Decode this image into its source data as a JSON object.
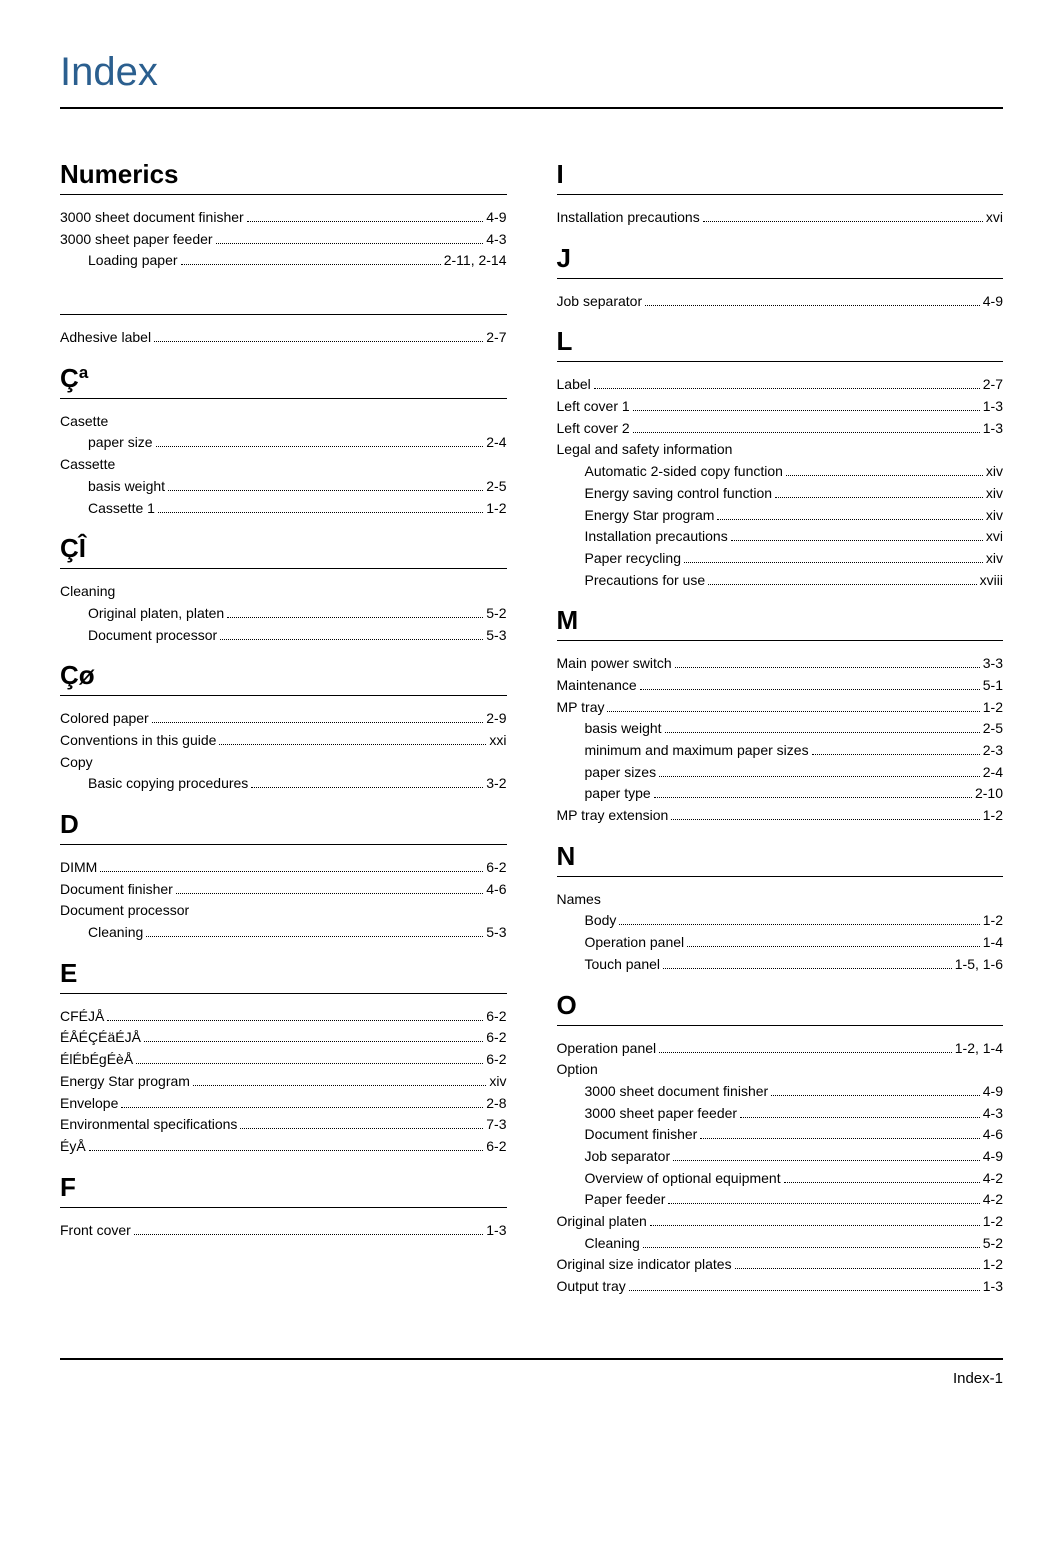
{
  "title": "Index",
  "footer": "Index-1",
  "left": [
    {
      "type": "heading",
      "text": "Numerics",
      "first": true
    },
    {
      "type": "entry",
      "term": "3000 sheet document finisher",
      "page": "4-9"
    },
    {
      "type": "entry",
      "term": "3000 sheet paper feeder",
      "page": "4-3"
    },
    {
      "type": "sub",
      "term": "Loading paper",
      "page": "2-11, 2-14"
    },
    {
      "type": "rule"
    },
    {
      "type": "entry",
      "term": "Adhesive label",
      "page": "2-7"
    },
    {
      "type": "heading",
      "text": "Çª"
    },
    {
      "type": "entry",
      "term": "Casette",
      "page": "",
      "noleader": true
    },
    {
      "type": "sub",
      "term": "paper size",
      "page": "2-4"
    },
    {
      "type": "entry",
      "term": "Cassette",
      "page": "",
      "noleader": true
    },
    {
      "type": "sub",
      "term": "basis weight",
      "page": "2-5"
    },
    {
      "type": "sub",
      "term": "Cassette 1",
      "page": "1-2"
    },
    {
      "type": "heading",
      "text": "ÇÎ"
    },
    {
      "type": "entry",
      "term": "Cleaning",
      "page": "",
      "noleader": true
    },
    {
      "type": "sub",
      "term": "Original platen, platen",
      "page": "5-2"
    },
    {
      "type": "sub",
      "term": "Document processor",
      "page": "5-3"
    },
    {
      "type": "heading",
      "text": "Çø"
    },
    {
      "type": "entry",
      "term": "Colored paper",
      "page": "2-9"
    },
    {
      "type": "entry",
      "term": "Conventions in this guide",
      "page": "xxi"
    },
    {
      "type": "entry",
      "term": "Copy",
      "page": "",
      "noleader": true
    },
    {
      "type": "sub",
      "term": "Basic copying procedures",
      "page": "3-2"
    },
    {
      "type": "heading",
      "text": "D"
    },
    {
      "type": "entry",
      "term": "DIMM",
      "page": "6-2"
    },
    {
      "type": "entry",
      "term": "Document finisher",
      "page": "4-6"
    },
    {
      "type": "entry",
      "term": "Document processor",
      "page": "",
      "noleader": true
    },
    {
      "type": "sub",
      "term": "Cleaning",
      "page": "5-3"
    },
    {
      "type": "heading",
      "text": "E"
    },
    {
      "type": "entry",
      "term": "CFÉJÅ",
      "page": "6-2"
    },
    {
      "type": "entry",
      "term": "ÉÅÉÇÉäÉJÅ",
      "page": "6-2"
    },
    {
      "type": "entry",
      "term": "ÉlÉbÉgÉèÅ",
      "page": "6-2"
    },
    {
      "type": "entry",
      "term": "Energy Star program",
      "page": "xiv"
    },
    {
      "type": "entry",
      "term": "Envelope",
      "page": "2-8"
    },
    {
      "type": "entry",
      "term": "Environmental specifications",
      "page": "7-3"
    },
    {
      "type": "entry",
      "term": "ÉyÅ",
      "page": "6-2"
    },
    {
      "type": "heading",
      "text": "F"
    },
    {
      "type": "entry",
      "term": "Front cover",
      "page": "1-3"
    }
  ],
  "right": [
    {
      "type": "heading",
      "text": "I",
      "first": true
    },
    {
      "type": "entry",
      "term": "Installation precautions",
      "page": "xvi"
    },
    {
      "type": "heading",
      "text": "J"
    },
    {
      "type": "entry",
      "term": "Job separator",
      "page": "4-9"
    },
    {
      "type": "heading",
      "text": "L"
    },
    {
      "type": "entry",
      "term": "Label",
      "page": "2-7"
    },
    {
      "type": "entry",
      "term": "Left cover 1",
      "page": "1-3"
    },
    {
      "type": "entry",
      "term": "Left cover 2",
      "page": "1-3"
    },
    {
      "type": "entry",
      "term": "Legal and safety information",
      "page": "",
      "noleader": true
    },
    {
      "type": "sub",
      "term": "Automatic 2-sided copy function",
      "page": "xiv"
    },
    {
      "type": "sub",
      "term": "Energy saving control function",
      "page": "xiv"
    },
    {
      "type": "sub",
      "term": "Energy Star program",
      "page": "xiv"
    },
    {
      "type": "sub",
      "term": "Installation precautions",
      "page": "xvi"
    },
    {
      "type": "sub",
      "term": "Paper recycling",
      "page": "xiv"
    },
    {
      "type": "sub",
      "term": "Precautions for use",
      "page": "xviii"
    },
    {
      "type": "heading",
      "text": "M"
    },
    {
      "type": "entry",
      "term": "Main power switch",
      "page": "3-3"
    },
    {
      "type": "entry",
      "term": "Maintenance",
      "page": "5-1"
    },
    {
      "type": "entry",
      "term": "MP tray",
      "page": "1-2"
    },
    {
      "type": "sub",
      "term": "basis weight",
      "page": "2-5"
    },
    {
      "type": "sub",
      "term": "minimum and maximum paper sizes",
      "page": "2-3"
    },
    {
      "type": "sub",
      "term": "paper sizes",
      "page": "2-4"
    },
    {
      "type": "sub",
      "term": "paper type",
      "page": "2-10"
    },
    {
      "type": "entry",
      "term": "MP tray extension",
      "page": "1-2"
    },
    {
      "type": "heading",
      "text": "N"
    },
    {
      "type": "entry",
      "term": "Names",
      "page": "",
      "noleader": true
    },
    {
      "type": "sub",
      "term": "Body",
      "page": "1-2"
    },
    {
      "type": "sub",
      "term": "Operation panel",
      "page": "1-4"
    },
    {
      "type": "sub",
      "term": "Touch panel",
      "page": "1-5, 1-6"
    },
    {
      "type": "heading",
      "text": "O"
    },
    {
      "type": "entry",
      "term": "Operation panel",
      "page": "1-2, 1-4"
    },
    {
      "type": "entry",
      "term": "Option",
      "page": "",
      "noleader": true
    },
    {
      "type": "sub",
      "term": "3000 sheet document finisher",
      "page": "4-9"
    },
    {
      "type": "sub",
      "term": "3000 sheet paper feeder",
      "page": "4-3"
    },
    {
      "type": "sub",
      "term": "Document finisher",
      "page": "4-6"
    },
    {
      "type": "sub",
      "term": "Job separator",
      "page": "4-9"
    },
    {
      "type": "sub",
      "term": "Overview of optional equipment",
      "page": "4-2"
    },
    {
      "type": "sub",
      "term": "Paper feeder",
      "page": "4-2"
    },
    {
      "type": "entry",
      "term": "Original platen",
      "page": "1-2"
    },
    {
      "type": "sub",
      "term": "Cleaning",
      "page": "5-2"
    },
    {
      "type": "entry",
      "term": "Original size indicator plates",
      "page": "1-2"
    },
    {
      "type": "entry",
      "term": "Output tray",
      "page": "1-3"
    }
  ]
}
